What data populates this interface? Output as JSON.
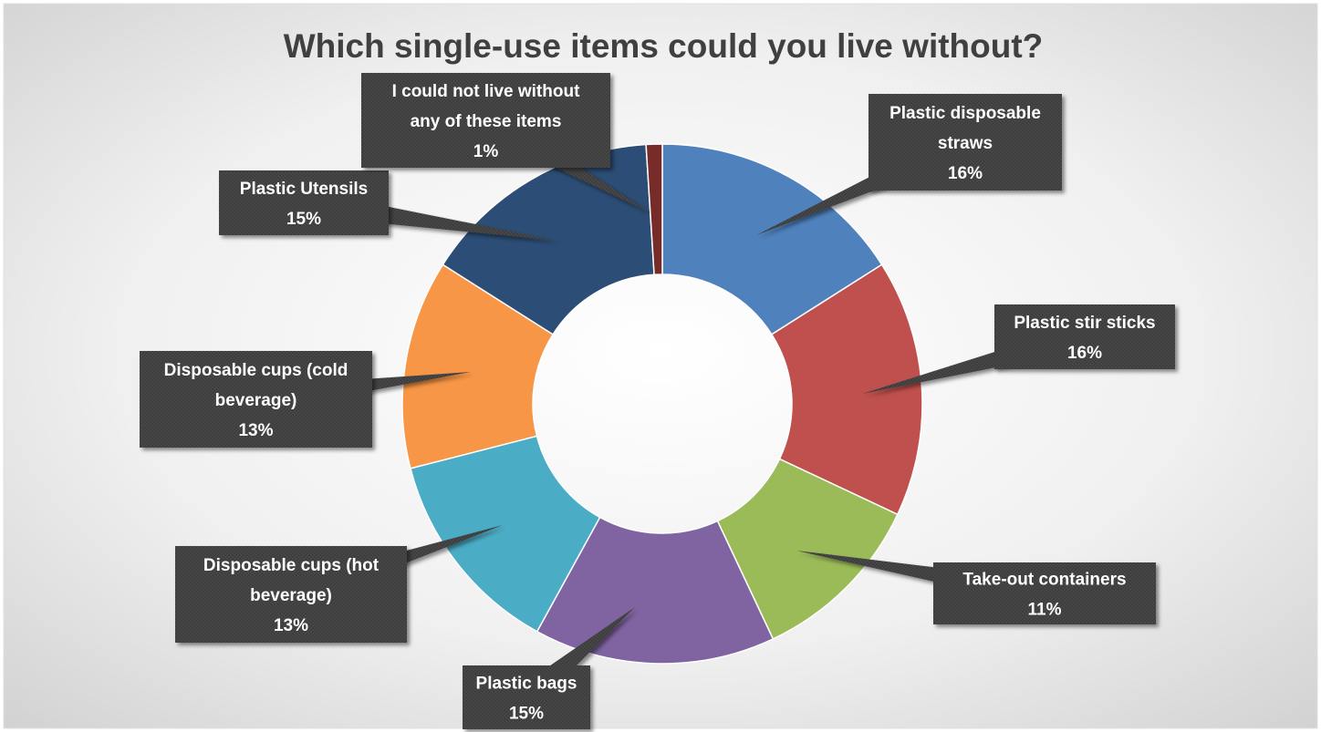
{
  "chart_data": {
    "type": "pie",
    "variant": "doughnut",
    "title": "Which single-use items could you live without?",
    "categories": [
      "Plastic disposable straws",
      "Plastic stir sticks",
      "Take-out containers",
      "Plastic bags",
      "Disposable cups (hot beverage)",
      "Disposable cups (cold beverage)",
      "Plastic Utensils",
      "I could not live without any of these items"
    ],
    "values": [
      16,
      16,
      11,
      15,
      13,
      13,
      15,
      1
    ],
    "value_labels": [
      "16%",
      "16%",
      "11%",
      "15%",
      "13%",
      "13%",
      "15%",
      "1%"
    ],
    "colors": [
      "#4f81bd",
      "#c0504d",
      "#9bbb59",
      "#8064a2",
      "#4bacc6",
      "#f79646",
      "#2c4d75",
      "#772c2a"
    ],
    "data_label_lines": [
      [
        "Plastic disposable",
        "straws",
        "16%"
      ],
      [
        "Plastic stir sticks",
        "16%"
      ],
      [
        "Take-out containers",
        "11%"
      ],
      [
        "Plastic bags",
        "15%"
      ],
      [
        "Disposable cups (hot",
        "beverage)",
        "13%"
      ],
      [
        "Disposable cups (cold",
        "beverage)",
        "13%"
      ],
      [
        "Plastic Utensils",
        "15%"
      ],
      [
        "I could not live without",
        "any of these items",
        "1%"
      ]
    ],
    "legend": "none",
    "background": [
      "#ffffff",
      "#d9d9d9"
    ],
    "label_box_color": "#3f3f3f"
  }
}
